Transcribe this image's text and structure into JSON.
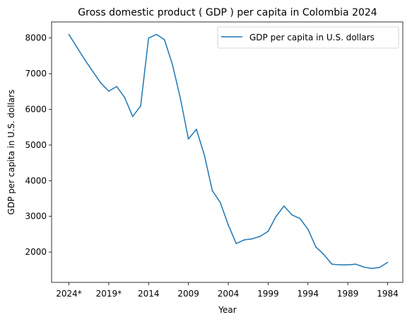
{
  "chart_data": {
    "type": "line",
    "title": "Gross domestic product ( GDP ) per capita in Colombia 2024",
    "xlabel": "Year",
    "ylabel": "GDP per capita in U.S. dollars",
    "x": [
      "2024*",
      "2023*",
      "2022*",
      "2021*",
      "2020*",
      "2019*",
      "2018",
      "2017",
      "2016",
      "2015",
      "2014",
      "2013",
      "2012",
      "2011",
      "2010",
      "2009",
      "2008",
      "2007",
      "2006",
      "2005",
      "2004",
      "2003",
      "2002",
      "2001",
      "2000",
      "1999",
      "1998",
      "1997",
      "1996",
      "1995",
      "1994",
      "1993",
      "1992",
      "1991",
      "1990",
      "1989",
      "1988",
      "1987",
      "1986",
      "1985",
      "1984"
    ],
    "x_ticks": [
      "2024*",
      "2019*",
      "2014",
      "2009",
      "2004",
      "1999",
      "1994",
      "1989",
      "1984"
    ],
    "y_ticks": [
      2000,
      3000,
      4000,
      5000,
      6000,
      7000,
      8000
    ],
    "ylim": [
      1150,
      8450
    ],
    "grid": false,
    "legend_position": "top-right",
    "color": "#1f77b4",
    "series": [
      {
        "name": "GDP per capita in U.S. dollars",
        "values": [
          8100,
          7740,
          7390,
          7060,
          6740,
          6510,
          6640,
          6330,
          5800,
          6090,
          8000,
          8100,
          7950,
          7250,
          6300,
          5170,
          5440,
          4720,
          3720,
          3390,
          2760,
          2240,
          2340,
          2370,
          2440,
          2580,
          3000,
          3290,
          3040,
          2940,
          2640,
          2140,
          1930,
          1660,
          1640,
          1640,
          1660,
          1580,
          1540,
          1570,
          1710
        ]
      }
    ]
  }
}
